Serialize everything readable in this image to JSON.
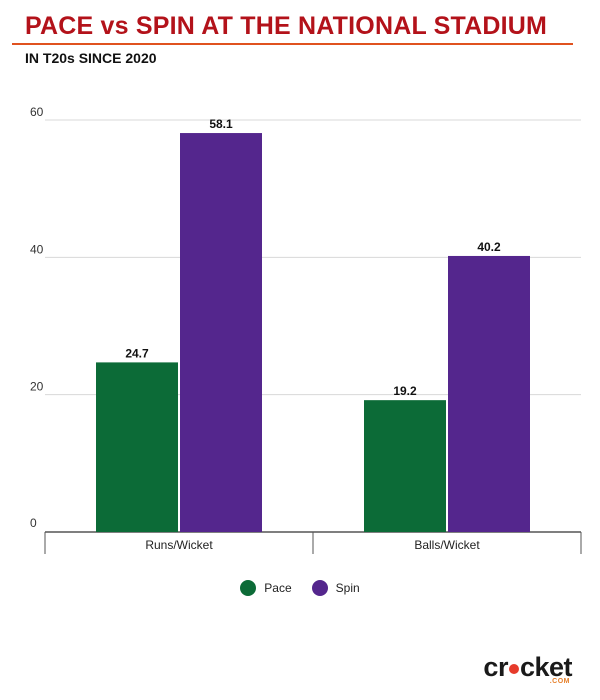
{
  "header": {
    "title": "PACE vs SPIN AT THE NATIONAL STADIUM",
    "subtitle": "IN T20s SINCE 2020"
  },
  "colors": {
    "title": "#b3121a",
    "rule": "#e0521f",
    "pace": "#0c6b37",
    "spin": "#54268d"
  },
  "chart_data": {
    "type": "bar",
    "categories": [
      "Runs/Wicket",
      "Balls/Wicket"
    ],
    "series": [
      {
        "name": "Pace",
        "values": [
          24.7,
          19.2
        ],
        "color": "#0c6b37"
      },
      {
        "name": "Spin",
        "values": [
          58.1,
          40.2
        ],
        "color": "#54268d"
      }
    ],
    "ylim": [
      0,
      60
    ],
    "yticks": [
      0,
      20,
      40,
      60
    ],
    "grid": true,
    "legend": "bottom-center",
    "data_labels": true
  },
  "logo": {
    "text_before": "cr",
    "text_after": "cket",
    "sub": ".COM"
  }
}
